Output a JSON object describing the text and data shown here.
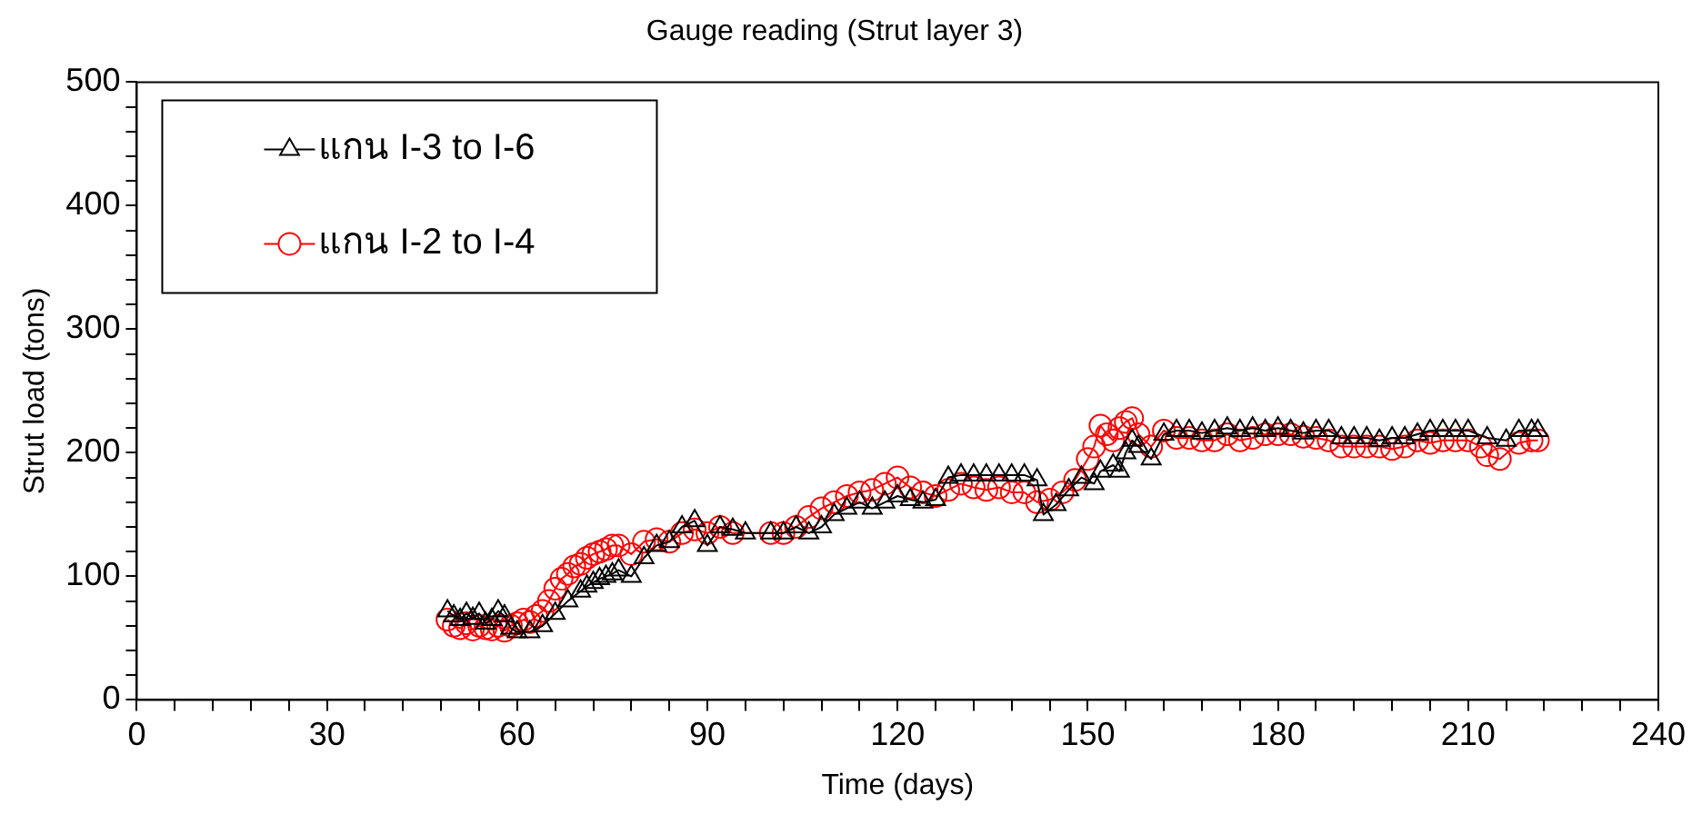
{
  "chart_data": {
    "type": "line",
    "title": "Gauge reading (Strut layer 3)",
    "xlabel": "Time (days)",
    "ylabel": "Strut load (tons)",
    "xlim": [
      0,
      240
    ],
    "xticks": [
      0,
      {
        "value": 6,
        "label": null
      },
      {
        "value": 12,
        "label": null
      },
      {
        "value": 18,
        "label": null
      },
      {
        "value": 24,
        "label": null
      },
      30,
      {
        "value": 36,
        "label": null
      },
      {
        "value": 42,
        "label": null
      },
      {
        "value": 48,
        "label": null
      },
      {
        "value": 54,
        "label": null
      },
      60,
      {
        "value": 66,
        "label": null
      },
      {
        "value": 72,
        "label": null
      },
      {
        "value": 78,
        "label": null
      },
      {
        "value": 84,
        "label": null
      },
      90,
      {
        "value": 96,
        "label": null
      },
      {
        "value": 102,
        "label": null
      },
      {
        "value": 108,
        "label": null
      },
      {
        "value": 114,
        "label": null
      },
      120,
      {
        "value": 126,
        "label": null
      },
      {
        "value": 132,
        "label": null
      },
      {
        "value": 138,
        "label": null
      },
      {
        "value": 144,
        "label": null
      },
      150,
      {
        "value": 156,
        "label": null
      },
      {
        "value": 162,
        "label": null
      },
      {
        "value": 168,
        "label": null
      },
      {
        "value": 174,
        "label": null
      },
      180,
      {
        "value": 186,
        "label": null
      },
      {
        "value": 192,
        "label": null
      },
      {
        "value": 198,
        "label": null
      },
      {
        "value": 204,
        "label": null
      },
      210,
      {
        "value": 216,
        "label": null
      },
      {
        "value": 222,
        "label": null
      },
      {
        "value": 228,
        "label": null
      },
      {
        "value": 234,
        "label": null
      },
      240
    ],
    "ylim": [
      0,
      500
    ],
    "yticks": [
      0,
      {
        "value": 20,
        "label": null
      },
      {
        "value": 40,
        "label": null
      },
      {
        "value": 60,
        "label": null
      },
      {
        "value": 80,
        "label": null
      },
      100,
      {
        "value": 120,
        "label": null
      },
      {
        "value": 140,
        "label": null
      },
      {
        "value": 160,
        "label": null
      },
      {
        "value": 180,
        "label": null
      },
      200,
      {
        "value": 220,
        "label": null
      },
      {
        "value": 240,
        "label": null
      },
      {
        "value": 260,
        "label": null
      },
      {
        "value": 280,
        "label": null
      },
      300,
      {
        "value": 320,
        "label": null
      },
      {
        "value": 340,
        "label": null
      },
      {
        "value": 360,
        "label": null
      },
      {
        "value": 380,
        "label": null
      },
      400,
      {
        "value": 420,
        "label": null
      },
      {
        "value": 440,
        "label": null
      },
      {
        "value": 460,
        "label": null
      },
      {
        "value": 480,
        "label": null
      },
      500
    ],
    "grid": false,
    "legend": "top left",
    "line_style": "solid",
    "series": [
      {
        "name": "แกน I-3 to I-6",
        "color": "#000000",
        "marker": "triangle",
        "x": [
          49,
          50,
          51,
          52,
          53,
          54,
          55,
          56,
          57,
          58,
          59,
          60,
          62,
          64,
          66,
          68,
          70,
          71,
          72,
          73,
          74,
          75,
          76,
          78,
          80,
          82,
          84,
          86,
          88,
          90,
          92,
          94,
          96,
          100,
          102,
          104,
          106,
          108,
          110,
          112,
          114,
          116,
          118,
          120,
          122,
          124,
          126,
          128,
          130,
          132,
          134,
          136,
          138,
          140,
          142,
          143,
          145,
          147,
          149,
          151,
          152,
          154,
          155,
          156,
          157,
          158,
          160,
          162,
          164,
          166,
          168,
          170,
          172,
          174,
          176,
          178,
          180,
          182,
          184,
          186,
          188,
          190,
          192,
          194,
          196,
          198,
          200,
          202,
          204,
          206,
          208,
          210,
          213,
          216,
          218,
          220,
          221
        ],
        "values": [
          72,
          68,
          65,
          70,
          66,
          70,
          62,
          65,
          72,
          68,
          58,
          55,
          55,
          60,
          70,
          80,
          88,
          92,
          95,
          98,
          100,
          102,
          105,
          100,
          115,
          125,
          128,
          140,
          145,
          125,
          140,
          138,
          135,
          135,
          135,
          140,
          135,
          140,
          150,
          155,
          160,
          155,
          160,
          165,
          162,
          160,
          162,
          180,
          182,
          182,
          182,
          182,
          182,
          182,
          178,
          150,
          158,
          170,
          180,
          175,
          185,
          190,
          185,
          200,
          210,
          205,
          195,
          215,
          218,
          218,
          216,
          218,
          220,
          218,
          220,
          218,
          220,
          218,
          216,
          218,
          218,
          212,
          212,
          212,
          210,
          212,
          212,
          215,
          218,
          218,
          218,
          218,
          212,
          210,
          218,
          218,
          218
        ]
      },
      {
        "name": "แกน I-2 to I-4",
        "color": "#ff0000",
        "marker": "circle",
        "x": [
          49,
          50,
          51,
          52,
          53,
          54,
          55,
          56,
          57,
          58,
          59,
          60,
          61,
          62,
          63,
          64,
          65,
          66,
          67,
          68,
          69,
          70,
          71,
          72,
          73,
          74,
          75,
          76,
          78,
          80,
          82,
          84,
          86,
          88,
          90,
          92,
          94,
          100,
          102,
          104,
          106,
          108,
          110,
          112,
          114,
          116,
          118,
          120,
          122,
          124,
          126,
          128,
          130,
          132,
          134,
          136,
          138,
          140,
          142,
          144,
          146,
          148,
          150,
          151,
          152,
          153,
          154,
          155,
          156,
          157,
          158,
          160,
          162,
          164,
          166,
          168,
          170,
          172,
          174,
          176,
          178,
          180,
          182,
          184,
          186,
          188,
          190,
          192,
          194,
          196,
          198,
          200,
          202,
          204,
          206,
          208,
          210,
          212,
          213,
          215,
          218,
          220,
          221
        ],
        "values": [
          65,
          60,
          58,
          62,
          57,
          60,
          58,
          57,
          60,
          56,
          60,
          62,
          65,
          63,
          68,
          72,
          80,
          90,
          98,
          102,
          108,
          110,
          115,
          118,
          120,
          122,
          125,
          125,
          118,
          128,
          130,
          128,
          135,
          138,
          135,
          140,
          135,
          135,
          135,
          140,
          148,
          155,
          160,
          165,
          168,
          170,
          175,
          180,
          172,
          168,
          165,
          170,
          175,
          172,
          170,
          172,
          168,
          168,
          160,
          162,
          168,
          178,
          195,
          205,
          222,
          215,
          210,
          220,
          225,
          228,
          215,
          205,
          218,
          212,
          212,
          210,
          210,
          215,
          210,
          212,
          215,
          215,
          215,
          213,
          212,
          210,
          205,
          205,
          205,
          205,
          203,
          205,
          210,
          208,
          210,
          210,
          210,
          205,
          198,
          195,
          208,
          210,
          210
        ]
      }
    ]
  }
}
